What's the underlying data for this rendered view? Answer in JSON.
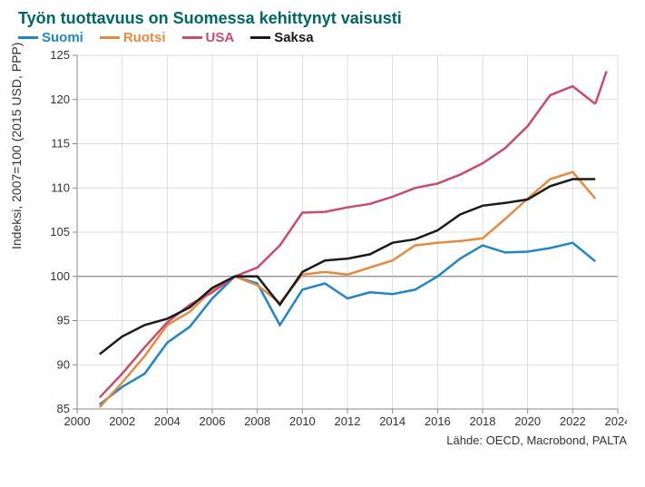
{
  "title": "Työn tuottavuus on Suomessa kehittynyt vaisusti",
  "title_color": "#006666",
  "ylabel": "Indeksi, 2007=100 (2015 USD, PPP)",
  "source": "Lähde: OECD, Macrobond, PALTA",
  "legend": [
    {
      "label": "Suomi",
      "color": "#1f85c7"
    },
    {
      "label": "Ruotsi",
      "color": "#e68a3d"
    },
    {
      "label": "USA",
      "color": "#c94b6d"
    },
    {
      "label": "Saksa",
      "color": "#1a1a1a"
    }
  ],
  "chart": {
    "type": "line",
    "xlim": [
      2000,
      2024
    ],
    "ylim": [
      85,
      125
    ],
    "xtick_step": 2,
    "ytick_step": 5,
    "grid_color": "#d0d0d0",
    "baseline_y": 100,
    "line_width": 2.5,
    "title_fontsize": 18,
    "label_fontsize": 14,
    "tick_fontsize": 13,
    "series": [
      {
        "name": "Suomi",
        "color": "#1f85c7",
        "x": [
          2001,
          2002,
          2003,
          2004,
          2005,
          2006,
          2007,
          2008,
          2009,
          2010,
          2011,
          2012,
          2013,
          2014,
          2015,
          2016,
          2017,
          2018,
          2019,
          2020,
          2021,
          2022,
          2023
        ],
        "y": [
          85.5,
          87.5,
          89.0,
          92.5,
          94.3,
          97.5,
          100.0,
          99.2,
          94.5,
          98.5,
          99.2,
          97.5,
          98.2,
          98.0,
          98.5,
          100.0,
          102.0,
          103.5,
          102.7,
          102.8,
          103.2,
          103.8,
          101.7
        ]
      },
      {
        "name": "Ruotsi",
        "color": "#e68a3d",
        "x": [
          2001,
          2002,
          2003,
          2004,
          2005,
          2006,
          2007,
          2008,
          2009,
          2010,
          2011,
          2012,
          2013,
          2014,
          2015,
          2016,
          2017,
          2018,
          2019,
          2020,
          2021,
          2022,
          2023
        ],
        "y": [
          85.2,
          88.0,
          91.0,
          94.5,
          96.0,
          98.5,
          100.0,
          99.0,
          97.0,
          100.2,
          100.5,
          100.2,
          101.0,
          101.8,
          103.5,
          103.8,
          104.0,
          104.3,
          106.5,
          108.8,
          111.0,
          111.8,
          108.8
        ]
      },
      {
        "name": "USA",
        "color": "#c94b6d",
        "x": [
          2001,
          2002,
          2003,
          2004,
          2005,
          2006,
          2007,
          2008,
          2009,
          2010,
          2011,
          2012,
          2013,
          2014,
          2015,
          2016,
          2017,
          2018,
          2019,
          2020,
          2021,
          2022,
          2023
        ],
        "y": [
          86.3,
          89.0,
          92.0,
          94.8,
          96.8,
          98.2,
          100.0,
          101.0,
          103.5,
          107.2,
          107.3,
          107.8,
          108.2,
          109.0,
          110.0,
          110.5,
          111.5,
          112.8,
          114.5,
          117.0,
          120.5,
          121.5,
          119.5
        ]
      },
      {
        "name": "USA_ext",
        "color": "#c94b6d",
        "x": [
          2023,
          2023.5
        ],
        "y": [
          119.5,
          123.2
        ]
      },
      {
        "name": "Saksa",
        "color": "#1a1a1a",
        "x": [
          2001,
          2002,
          2003,
          2004,
          2005,
          2006,
          2007,
          2008,
          2009,
          2010,
          2011,
          2012,
          2013,
          2014,
          2015,
          2016,
          2017,
          2018,
          2019,
          2020,
          2021,
          2022,
          2023
        ],
        "y": [
          91.2,
          93.2,
          94.5,
          95.2,
          96.5,
          98.7,
          100.0,
          100.0,
          96.8,
          100.5,
          101.8,
          102.0,
          102.5,
          103.8,
          104.2,
          105.2,
          107.0,
          108.0,
          108.3,
          108.7,
          110.2,
          111.0,
          111.0
        ]
      }
    ]
  }
}
